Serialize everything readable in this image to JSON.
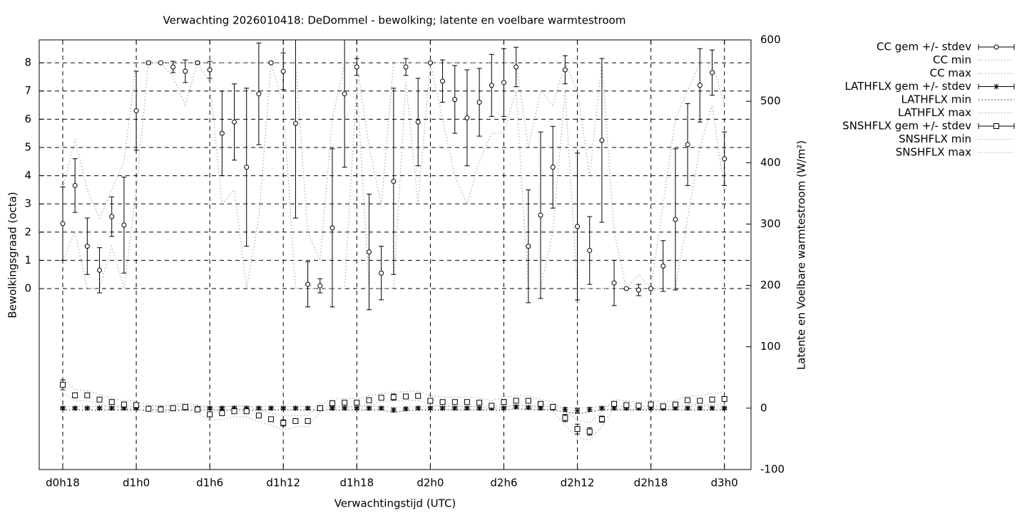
{
  "chart_data": {
    "type": "errorbars",
    "title": "Verwachting 2026010418: DeDommel - bewolking; latente en voelbare warmtestroom",
    "xlabel": "Verwachtingstijd (UTC)",
    "ylabel": "Bewolkingsgraad (octa)",
    "y2label": "Latente en Voelbare warmtestroom (W/m²)",
    "xlim": [
      16.08,
      74.17
    ],
    "xticks": [
      {
        "value": 18,
        "label": "d0h18"
      },
      {
        "value": 24,
        "label": "d1h0"
      },
      {
        "value": 30,
        "label": "d1h6"
      },
      {
        "value": 36,
        "label": "d1h12"
      },
      {
        "value": 42,
        "label": "d1h18"
      },
      {
        "value": 48,
        "label": "d2h0"
      },
      {
        "value": 54,
        "label": "d2h6"
      },
      {
        "value": 60,
        "label": "d2h12"
      },
      {
        "value": 66,
        "label": "d2h18"
      },
      {
        "value": 72,
        "label": "d3h0"
      }
    ],
    "ylim": [
      -6.41,
      8.81
    ],
    "yticks": [
      0,
      1,
      2,
      3,
      4,
      5,
      6,
      7,
      8
    ],
    "y2lim": [
      -100,
      600
    ],
    "y2ticks": [
      -100,
      0,
      100,
      200,
      300,
      400,
      500,
      600
    ],
    "grid": true,
    "legend": "right",
    "x": [
      18,
      19,
      20,
      21,
      22,
      23,
      24,
      25,
      26,
      27,
      28,
      29,
      30,
      31,
      32,
      33,
      34,
      35,
      36,
      37,
      38,
      39,
      40,
      41,
      42,
      43,
      44,
      45,
      46,
      47,
      48,
      49,
      50,
      51,
      52,
      53,
      54,
      55,
      56,
      57,
      58,
      59,
      60,
      61,
      62,
      63,
      64,
      65,
      66,
      67,
      68,
      69,
      70,
      71,
      72
    ],
    "series": [
      {
        "name": "CC gem +/- stdev",
        "color": "#000000",
        "marker": "circle",
        "style": "errorbars",
        "axis": "y",
        "values": [
          2.3,
          3.65,
          1.5,
          0.65,
          2.55,
          2.25,
          6.3,
          8.0,
          8.0,
          7.85,
          7.7,
          8.0,
          7.75,
          5.5,
          5.9,
          4.3,
          6.9,
          8.0,
          7.7,
          5.85,
          0.15,
          0.1,
          2.15,
          6.9,
          7.85,
          1.3,
          0.55,
          3.8,
          7.85,
          5.9,
          8.0,
          7.35,
          6.7,
          6.05,
          6.6,
          7.2,
          7.3,
          7.85,
          1.5,
          2.6,
          4.3,
          7.75,
          2.2,
          1.35,
          5.25,
          0.2,
          0.0,
          -0.05,
          0.0,
          0.8,
          2.45,
          5.1,
          7.2,
          7.65,
          4.6
        ],
        "errors": [
          1.3,
          0.95,
          1.0,
          0.8,
          0.7,
          1.7,
          1.4,
          0.05,
          0,
          0.2,
          0.4,
          0.05,
          0.3,
          1.5,
          1.35,
          2.8,
          1.8,
          0,
          0.65,
          3.35,
          0.8,
          0.25,
          2.8,
          2.6,
          0.3,
          2.05,
          0.95,
          3.3,
          0.3,
          1.55,
          0,
          0.75,
          1.2,
          1.7,
          1.2,
          1.1,
          1.2,
          0.7,
          2.0,
          2.95,
          1.45,
          0.5,
          2.6,
          1.2,
          2.9,
          0.8,
          0,
          0.2,
          0,
          0.9,
          2.5,
          1.45,
          1.3,
          0.8,
          0.95
        ]
      },
      {
        "name": "CC min",
        "color": "#b0b0b0",
        "style": "dotted",
        "axis": "y",
        "values": [
          1.0,
          2.0,
          0,
          0,
          1.5,
          0,
          3.5,
          8,
          8,
          7.5,
          6.5,
          8,
          7.3,
          3,
          3.5,
          0,
          2.5,
          8,
          6.5,
          0,
          0,
          0,
          0,
          0,
          7.3,
          0,
          0,
          0,
          7.3,
          3,
          8,
          6,
          4,
          3,
          4.5,
          5.5,
          5.5,
          7,
          0,
          0,
          2,
          7,
          0,
          0,
          0,
          0,
          0,
          0,
          0,
          0,
          0,
          2.5,
          5,
          6.5,
          3.5
        ]
      },
      {
        "name": "CC max",
        "color": "#b0b0b0",
        "style": "dotted",
        "axis": "y",
        "values": [
          3.5,
          5.3,
          3.5,
          2.5,
          3.5,
          4.5,
          8,
          8,
          8,
          8,
          8,
          8,
          8,
          8,
          8,
          8,
          8,
          8,
          8,
          8,
          2,
          1,
          6,
          8,
          8,
          5,
          3,
          8,
          8,
          8,
          8,
          8,
          8,
          8,
          8,
          8,
          8,
          8,
          5,
          7,
          6.5,
          8,
          7,
          4,
          8,
          2,
          0,
          0.5,
          0,
          3,
          6,
          7,
          8,
          8,
          6.5
        ]
      },
      {
        "name": "LATHFLX gem +/- stdev",
        "color": "#000000",
        "marker": "star",
        "style": "errorbars",
        "axis": "y2",
        "values": [
          0,
          0,
          0,
          0,
          0,
          0,
          0,
          0,
          0,
          0,
          0,
          0,
          0,
          0,
          0,
          0,
          0,
          0,
          0,
          0,
          0,
          0,
          0,
          0,
          0,
          0,
          0,
          -3,
          -1,
          0,
          0,
          0,
          0,
          0,
          0,
          0,
          0,
          2,
          1,
          0,
          0,
          -2,
          -4,
          -2,
          0,
          0,
          0,
          0,
          0,
          0,
          0,
          0,
          0,
          0,
          0
        ],
        "errors": [
          2,
          2,
          2,
          2,
          2,
          2,
          2,
          2,
          2,
          2,
          2,
          2,
          2,
          2,
          2,
          2,
          2,
          2,
          2,
          2,
          2,
          2,
          2,
          2,
          2,
          2,
          2,
          3,
          2,
          2,
          2,
          2,
          2,
          2,
          2,
          2,
          2,
          2,
          2,
          2,
          2,
          3,
          4,
          3,
          2,
          2,
          2,
          2,
          2,
          2,
          2,
          2,
          2,
          2,
          2
        ]
      },
      {
        "name": "LATHFLX min",
        "color": "#404040",
        "style": "dotted",
        "axis": "y2",
        "values": [
          -3,
          -3,
          -3,
          -3,
          -3,
          -3,
          -3,
          -3,
          -3,
          -3,
          -3,
          -3,
          -3,
          -3,
          -3,
          -3,
          -3,
          -3,
          -3,
          -3,
          -3,
          -3,
          -3,
          -3,
          -3,
          -3,
          -3,
          -7,
          -4,
          -3,
          -3,
          -3,
          -3,
          -3,
          -3,
          -3,
          -3,
          -1,
          -2,
          -3,
          -3,
          -6,
          -9,
          -6,
          -3,
          -3,
          -3,
          -3,
          -3,
          -3,
          -3,
          -3,
          -3,
          -3,
          -3
        ]
      },
      {
        "name": "LATHFLX max",
        "color": "#b0b0b0",
        "style": "dotted",
        "axis": "y2",
        "values": [
          3,
          3,
          3,
          3,
          3,
          3,
          3,
          3,
          3,
          3,
          3,
          3,
          3,
          3,
          3,
          3,
          3,
          3,
          3,
          3,
          3,
          3,
          3,
          3,
          3,
          3,
          3,
          1,
          2,
          3,
          3,
          3,
          3,
          3,
          3,
          3,
          3,
          5,
          4,
          3,
          3,
          1,
          0,
          1,
          3,
          3,
          3,
          3,
          3,
          3,
          3,
          3,
          3,
          3,
          3
        ]
      },
      {
        "name": "SNSHFLX gem +/- stdev",
        "color": "#000000",
        "marker": "square",
        "style": "errorbars",
        "axis": "y2",
        "values": [
          38,
          21,
          21,
          14,
          10,
          6,
          5,
          -1,
          -2,
          0,
          2,
          -2,
          -10,
          -8,
          -5,
          -5,
          -12,
          -18,
          -24,
          -21,
          -21,
          0,
          8,
          9,
          9,
          13,
          17,
          18,
          19,
          20,
          12,
          10,
          10,
          10,
          9,
          4,
          10,
          12,
          12,
          7,
          2,
          -16,
          -34,
          -38,
          -18,
          7,
          5,
          4,
          6,
          3,
          6,
          13,
          12,
          14,
          15
        ],
        "errors": [
          8,
          4,
          3,
          2,
          2,
          2,
          3,
          2,
          2,
          2,
          2,
          2,
          4,
          4,
          3,
          3,
          3,
          3,
          5,
          3,
          3,
          2,
          2,
          2,
          2,
          2,
          3,
          5,
          3,
          3,
          3,
          3,
          3,
          3,
          3,
          4,
          4,
          3,
          3,
          3,
          4,
          6,
          8,
          6,
          5,
          2,
          2,
          2,
          2,
          2,
          2,
          3,
          4,
          4,
          3
        ]
      },
      {
        "name": "SNSHFLX min",
        "color": "#b0b0b0",
        "style": "dotted",
        "axis": "y2",
        "values": [
          25,
          12,
          12,
          6,
          3,
          0,
          -2,
          -6,
          -7,
          -5,
          -4,
          -8,
          -20,
          -18,
          -14,
          -14,
          -22,
          -28,
          -36,
          -30,
          -30,
          -6,
          0,
          2,
          3,
          6,
          10,
          12,
          12,
          13,
          5,
          3,
          3,
          3,
          2,
          -2,
          2,
          4,
          5,
          0,
          -4,
          -28,
          -48,
          -52,
          -30,
          0,
          -2,
          -2,
          0,
          -3,
          0,
          6,
          5,
          6,
          7
        ]
      },
      {
        "name": "SNSHFLX max",
        "color": "#b0b0b0",
        "style": "dotted",
        "axis": "y2",
        "values": [
          50,
          30,
          28,
          22,
          16,
          12,
          12,
          5,
          4,
          6,
          8,
          5,
          0,
          2,
          4,
          4,
          -3,
          -8,
          -12,
          -12,
          -12,
          6,
          15,
          16,
          16,
          20,
          24,
          26,
          27,
          28,
          20,
          18,
          18,
          18,
          17,
          12,
          18,
          20,
          20,
          14,
          10,
          -4,
          -20,
          -24,
          -6,
          14,
          12,
          10,
          13,
          10,
          13,
          20,
          20,
          24,
          26
        ]
      }
    ]
  }
}
